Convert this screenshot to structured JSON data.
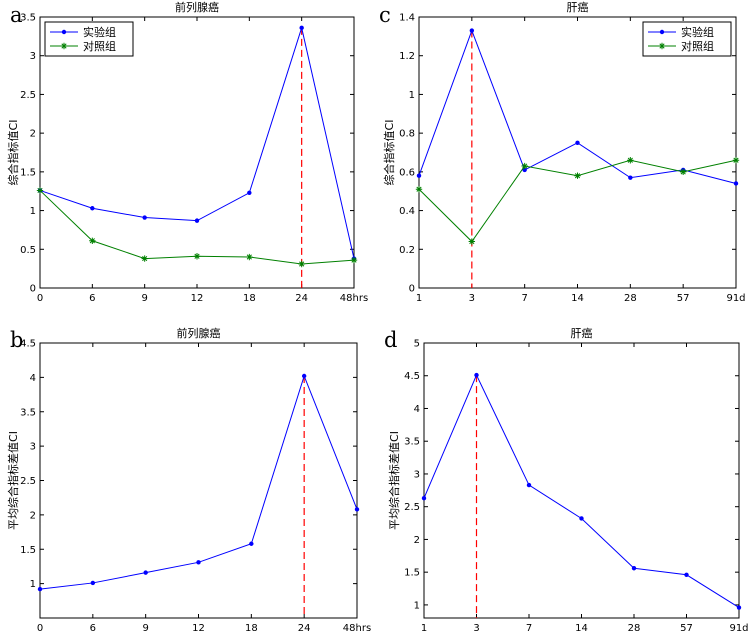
{
  "chart_data": [
    {
      "id": "a",
      "type": "line",
      "panel_label": "a",
      "title": "前列腺癌",
      "xlabel": "",
      "ylabel": "综合指标值CI",
      "categories": [
        "0",
        "6",
        "9",
        "12",
        "18",
        "24",
        "48hrs"
      ],
      "ylim": [
        0,
        3.5
      ],
      "yticks": [
        "0",
        "0.5",
        "1",
        "1.5",
        "2",
        "2.5",
        "3",
        "3.5"
      ],
      "dashed_marker_category": "24",
      "legend": "top-left",
      "series": [
        {
          "name": "实验组",
          "color": "#0000ff",
          "marker": "dot",
          "values": [
            1.26,
            1.03,
            0.91,
            0.87,
            1.23,
            3.36,
            0.38
          ]
        },
        {
          "name": "对照组",
          "color": "#008000",
          "marker": "star",
          "values": [
            1.26,
            0.61,
            0.38,
            0.41,
            0.4,
            0.31,
            0.36
          ]
        }
      ]
    },
    {
      "id": "c",
      "type": "line",
      "panel_label": "c",
      "title": "肝癌",
      "xlabel": "",
      "ylabel": "综合指标值CI",
      "categories": [
        "1",
        "3",
        "7",
        "14",
        "28",
        "57",
        "91d"
      ],
      "ylim": [
        0,
        1.4
      ],
      "yticks": [
        "0",
        "0.2",
        "0.4",
        "0.6",
        "0.8",
        "1",
        "1.2",
        "1.4"
      ],
      "dashed_marker_category": "3",
      "legend": "top-right",
      "series": [
        {
          "name": "实验组",
          "color": "#0000ff",
          "marker": "dot",
          "values": [
            0.58,
            1.33,
            0.61,
            0.75,
            0.57,
            0.61,
            0.54
          ]
        },
        {
          "name": "对照组",
          "color": "#008000",
          "marker": "star",
          "values": [
            0.51,
            0.24,
            0.63,
            0.58,
            0.66,
            0.6,
            0.66
          ]
        }
      ]
    },
    {
      "id": "b",
      "type": "line",
      "panel_label": "b",
      "title": "前列腺癌",
      "xlabel": "",
      "ylabel": "平均综合指标差值CI",
      "categories": [
        "0",
        "6",
        "9",
        "12",
        "18",
        "24",
        "48hrs"
      ],
      "ylim": [
        0.5,
        4.5
      ],
      "yticks": [
        "1",
        "1.5",
        "2",
        "2.5",
        "3",
        "3.5",
        "4",
        "4.5"
      ],
      "dashed_marker_category": "24",
      "legend": "none",
      "series": [
        {
          "name": "",
          "color": "#0000ff",
          "marker": "dot",
          "values": [
            0.92,
            1.01,
            1.16,
            1.31,
            1.58,
            4.02,
            2.08
          ]
        }
      ]
    },
    {
      "id": "d",
      "type": "line",
      "panel_label": "d",
      "title": "肝癌",
      "xlabel": "",
      "ylabel": "平均综合指标差值CI",
      "categories": [
        "1",
        "3",
        "7",
        "14",
        "28",
        "57",
        "91d"
      ],
      "ylim": [
        0.8,
        5
      ],
      "yticks": [
        "1",
        "1.5",
        "2",
        "2.5",
        "3",
        "3.5",
        "4",
        "4.5",
        "5"
      ],
      "dashed_marker_category": "3",
      "legend": "none",
      "series": [
        {
          "name": "",
          "color": "#0000ff",
          "marker": "dot",
          "values": [
            2.63,
            4.51,
            2.83,
            2.32,
            1.56,
            1.46,
            0.96
          ]
        }
      ]
    }
  ]
}
